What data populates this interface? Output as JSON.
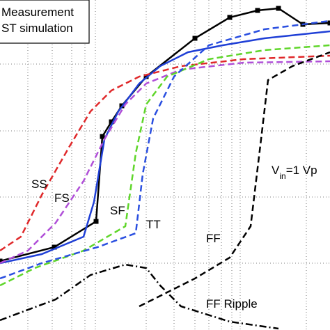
{
  "chart_data": {
    "type": "line",
    "xlim": [
      0,
      474
    ],
    "ylim": [
      0,
      474
    ],
    "xticks": [
      40,
      75,
      103,
      122,
      137,
      210,
      250,
      280,
      300,
      318,
      333,
      345,
      440
    ],
    "yticks": [
      96,
      191,
      286,
      382
    ],
    "grid": true,
    "legend": "top-left",
    "annotation": {
      "base": "V",
      "sub": "in",
      "rest": "=1 Vp"
    },
    "series": [
      {
        "name": "Measurement",
        "legend": true,
        "color": "#000000",
        "dash": "solid",
        "markers": true,
        "x": [
          0,
          78,
          138,
          147,
          160,
          175,
          210,
          280,
          330,
          370,
          400,
          435,
          474
        ],
        "values": [
          99,
          119,
          156,
          278,
          299,
          322,
          364,
          419,
          449,
          459,
          462,
          439,
          441
        ]
      },
      {
        "name": "ST simulation",
        "legend": true,
        "color": "#1f3fd6",
        "dash": "solid",
        "markers": false,
        "x": [
          0,
          60,
          120,
          135,
          150,
          170,
          200,
          230,
          270,
          320,
          380,
          474
        ],
        "values": [
          96,
          109,
          134,
          184,
          274,
          314,
          354,
          379,
          399,
          409,
          419,
          429
        ]
      },
      {
        "name": "SS",
        "legend": false,
        "color": "#e0282a",
        "dash": "dashed",
        "markers": false,
        "x": [
          0,
          30,
          60,
          100,
          130,
          160,
          200,
          260,
          350,
          474
        ],
        "values": [
          114,
          134,
          194,
          264,
          314,
          344,
          364,
          379,
          389,
          394
        ]
      },
      {
        "name": "FS",
        "legend": false,
        "color": "#b04fd8",
        "dash": "dashed",
        "markers": false,
        "x": [
          0,
          40,
          80,
          120,
          150,
          180,
          210,
          260,
          350,
          474
        ],
        "values": [
          96,
          114,
          154,
          214,
          274,
          324,
          354,
          374,
          384,
          386
        ]
      },
      {
        "name": "SF",
        "legend": false,
        "color": "#5fd62a",
        "dash": "dashed",
        "markers": false,
        "x": [
          0,
          50,
          120,
          180,
          195,
          210,
          240,
          300,
          380,
          474
        ],
        "values": [
          64,
          89,
          114,
          149,
          254,
          324,
          364,
          389,
          402,
          409
        ]
      },
      {
        "name": "TT",
        "legend": false,
        "color": "#2a4fe0",
        "dash": "dashed",
        "markers": false,
        "x": [
          0,
          60,
          140,
          195,
          205,
          220,
          250,
          300,
          380,
          474
        ],
        "values": [
          74,
          96,
          119,
          139,
          224,
          304,
          364,
          409,
          432,
          444
        ]
      },
      {
        "name": "FF",
        "legend": false,
        "color": "#000000",
        "dash": "dashed",
        "markers": false,
        "x": [
          200,
          280,
          330,
          360,
          375,
          385,
          420,
          474
        ],
        "values": [
          34,
          74,
          104,
          149,
          274,
          359,
          379,
          399
        ]
      },
      {
        "name": "FF Ripple",
        "legend": false,
        "color": "#000000",
        "dash": "dashdot",
        "markers": false,
        "x": [
          0,
          80,
          130,
          180,
          210,
          230,
          260,
          330,
          400
        ],
        "values": [
          14,
          44,
          79,
          94,
          89,
          64,
          34,
          12,
          2
        ]
      }
    ]
  }
}
